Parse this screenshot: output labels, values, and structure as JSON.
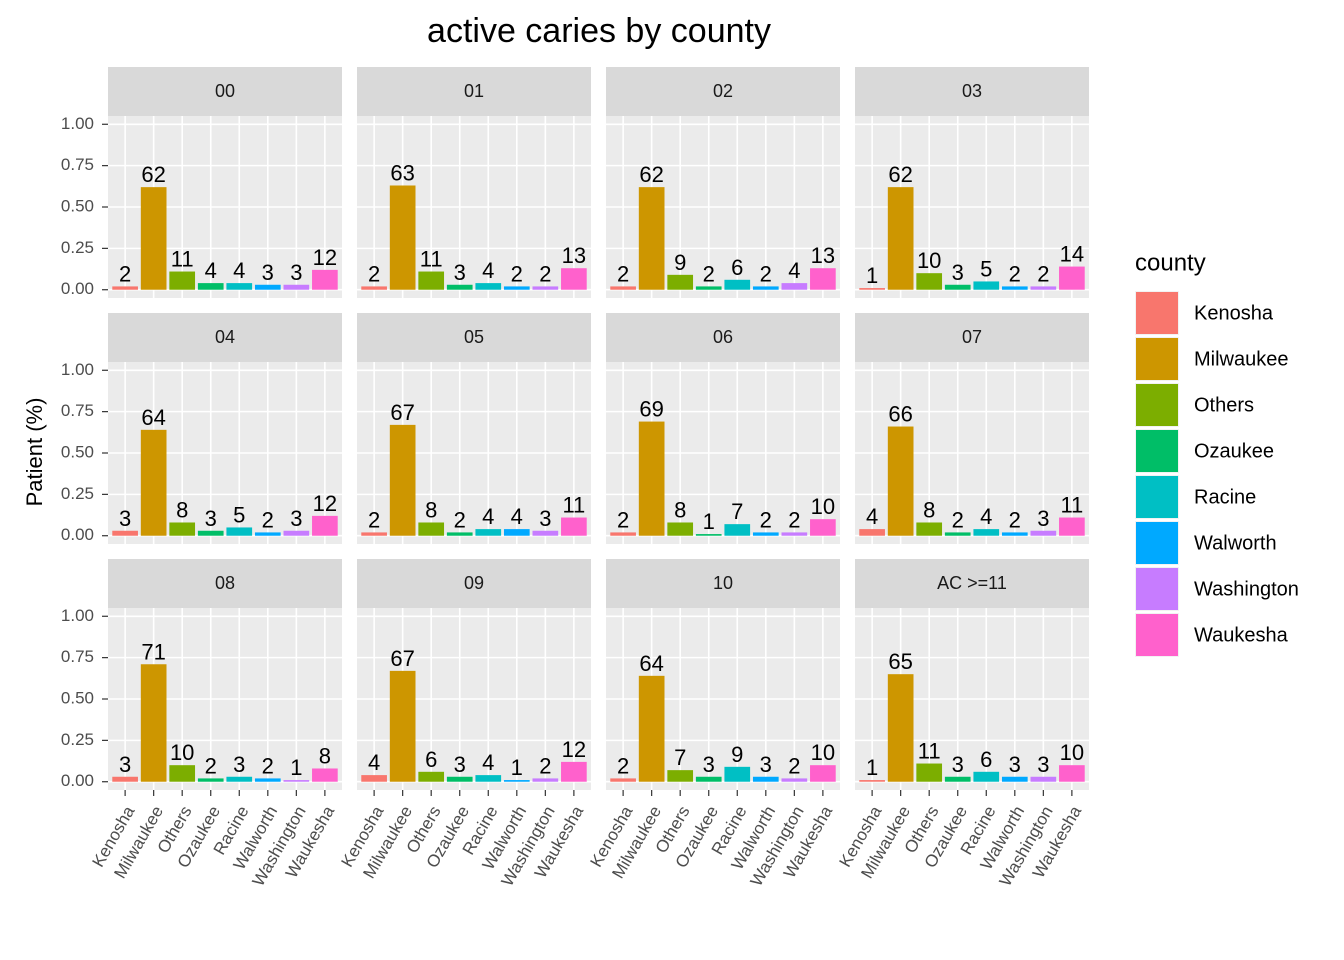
{
  "chart_data": {
    "type": "bar",
    "title": "active caries by county",
    "y_label": "Patient (%)",
    "legend_title": "county",
    "categories": [
      "Kenosha",
      "Milwaukee",
      "Others",
      "Ozaukee",
      "Racine",
      "Walworth",
      "Washington",
      "Waukesha"
    ],
    "colors": [
      "#f8766d",
      "#cd9600",
      "#7cae00",
      "#00be67",
      "#00bfc4",
      "#00a9ff",
      "#c77cff",
      "#ff61cc"
    ],
    "ylim": [
      -0.05,
      1.05
    ],
    "yticks": [
      {
        "value": 0,
        "label": "0.00"
      },
      {
        "value": 0.25,
        "label": "0.25"
      },
      {
        "value": 0.5,
        "label": "0.50"
      },
      {
        "value": 0.75,
        "label": "0.75"
      },
      {
        "value": 1,
        "label": "1.00"
      }
    ],
    "grid": true,
    "facets": [
      {
        "label": "00",
        "values": [
          0.02,
          0.62,
          0.11,
          0.04,
          0.04,
          0.03,
          0.03,
          0.12
        ],
        "value_labels": [
          "2",
          "62",
          "11",
          "4",
          "4",
          "3",
          "3",
          "12"
        ]
      },
      {
        "label": "01",
        "values": [
          0.02,
          0.63,
          0.11,
          0.03,
          0.04,
          0.02,
          0.02,
          0.13
        ],
        "value_labels": [
          "2",
          "63",
          "11",
          "3",
          "4",
          "2",
          "2",
          "13"
        ]
      },
      {
        "label": "02",
        "values": [
          0.02,
          0.62,
          0.09,
          0.02,
          0.06,
          0.02,
          0.04,
          0.13
        ],
        "value_labels": [
          "2",
          "62",
          "9",
          "2",
          "6",
          "2",
          "4",
          "13"
        ]
      },
      {
        "label": "03",
        "values": [
          0.01,
          0.62,
          0.1,
          0.03,
          0.05,
          0.02,
          0.02,
          0.14
        ],
        "value_labels": [
          "1",
          "62",
          "10",
          "3",
          "5",
          "2",
          "2",
          "14"
        ]
      },
      {
        "label": "04",
        "values": [
          0.03,
          0.64,
          0.08,
          0.03,
          0.05,
          0.02,
          0.03,
          0.12
        ],
        "value_labels": [
          "3",
          "64",
          "8",
          "3",
          "5",
          "2",
          "3",
          "12"
        ]
      },
      {
        "label": "05",
        "values": [
          0.02,
          0.67,
          0.08,
          0.02,
          0.04,
          0.04,
          0.03,
          0.11
        ],
        "value_labels": [
          "2",
          "67",
          "8",
          "2",
          "4",
          "4",
          "3",
          "11"
        ]
      },
      {
        "label": "06",
        "values": [
          0.02,
          0.69,
          0.08,
          0.01,
          0.07,
          0.02,
          0.02,
          0.1
        ],
        "value_labels": [
          "2",
          "69",
          "8",
          "1",
          "7",
          "2",
          "2",
          "10"
        ]
      },
      {
        "label": "07",
        "values": [
          0.04,
          0.66,
          0.08,
          0.02,
          0.04,
          0.02,
          0.03,
          0.11
        ],
        "value_labels": [
          "4",
          "66",
          "8",
          "2",
          "4",
          "2",
          "3",
          "11"
        ]
      },
      {
        "label": "08",
        "values": [
          0.03,
          0.71,
          0.1,
          0.02,
          0.03,
          0.02,
          0.01,
          0.08
        ],
        "value_labels": [
          "3",
          "71",
          "10",
          "2",
          "3",
          "2",
          "1",
          "8"
        ]
      },
      {
        "label": "09",
        "values": [
          0.04,
          0.67,
          0.06,
          0.03,
          0.04,
          0.01,
          0.02,
          0.12
        ],
        "value_labels": [
          "4",
          "67",
          "6",
          "3",
          "4",
          "1",
          "2",
          "12"
        ]
      },
      {
        "label": "10",
        "values": [
          0.02,
          0.64,
          0.07,
          0.03,
          0.09,
          0.03,
          0.02,
          0.1
        ],
        "value_labels": [
          "2",
          "64",
          "7",
          "3",
          "9",
          "3",
          "2",
          "10"
        ]
      },
      {
        "label": "AC >=11",
        "values": [
          0.01,
          0.65,
          0.11,
          0.03,
          0.06,
          0.03,
          0.03,
          0.1
        ],
        "value_labels": [
          "1",
          "65",
          "11",
          "3",
          "6",
          "3",
          "3",
          "10"
        ]
      }
    ]
  }
}
